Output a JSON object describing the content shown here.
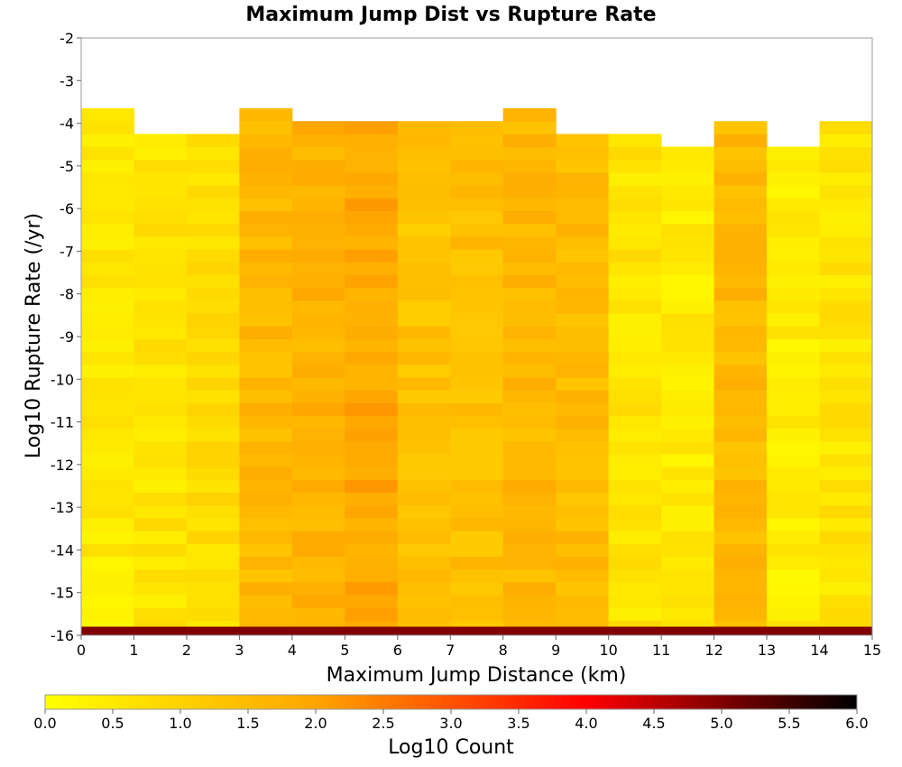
{
  "chart_data": {
    "type": "heatmap",
    "title": "Maximum Jump Dist vs Rupture Rate",
    "xlabel": "Maximum Jump Distance (km)",
    "ylabel": "Log10 Rupture Rate (/yr)",
    "xlim": [
      0,
      15
    ],
    "ylim": [
      -16,
      -2
    ],
    "x_ticks": [
      "0",
      "1",
      "2",
      "3",
      "4",
      "5",
      "6",
      "7",
      "8",
      "9",
      "10",
      "11",
      "12",
      "13",
      "14",
      "15"
    ],
    "y_ticks": [
      "-2",
      "-3",
      "-4",
      "-5",
      "-6",
      "-7",
      "-8",
      "-9",
      "-10",
      "-11",
      "-12",
      "-13",
      "-14",
      "-15",
      "-16"
    ],
    "x_bin_width": 1,
    "y_bin_start": -15.8,
    "y_bin_height": 0.3,
    "grid": true,
    "colorbar": {
      "label": "Log10 Count",
      "range": [
        0,
        6
      ],
      "ticks": [
        "0.0",
        "0.5",
        "1.0",
        "1.5",
        "2.0",
        "2.5",
        "3.0",
        "3.5",
        "4.0",
        "4.5",
        "5.0",
        "5.5",
        "6.0"
      ],
      "colors": [
        "#ffff00",
        "#ffa500",
        "#ff0000",
        "#000000"
      ]
    },
    "column_top_rate": [
      -3.8,
      -4.4,
      -4.4,
      -3.8,
      -4.1,
      -4.1,
      -4.1,
      -4.1,
      -3.8,
      -4.4,
      -4.4,
      -4.7,
      -4.1,
      -4.7,
      -4.1
    ],
    "column_level": [
      0.45,
      0.6,
      0.75,
      1.55,
      1.7,
      1.9,
      1.35,
      1.4,
      1.6,
      1.5,
      0.6,
      0.45,
      1.55,
      0.4,
      0.6
    ],
    "bottom_row": {
      "rate": -15.9,
      "log10_count": 5.0
    },
    "empty_cells": [
      [
        0,
        -6.4
      ],
      [
        0,
        -6.7
      ],
      [
        0,
        -7.9
      ],
      [
        0,
        -10.0
      ],
      [
        0,
        -12.7
      ],
      [
        1,
        -7.0
      ],
      [
        1,
        -8.8
      ],
      [
        1,
        -11.5
      ],
      [
        1,
        -12.4
      ],
      [
        1,
        -12.7
      ],
      [
        1,
        -15.4
      ],
      [
        2,
        -6.1
      ],
      [
        10,
        -7.3
      ],
      [
        11,
        -6.4
      ],
      [
        11,
        -6.7
      ],
      [
        11,
        -7.0
      ],
      [
        11,
        -8.5
      ],
      [
        11,
        -8.8
      ],
      [
        11,
        -12.4
      ],
      [
        11,
        -12.7
      ],
      [
        13,
        -7.3
      ],
      [
        13,
        -7.6
      ],
      [
        13,
        -7.9
      ],
      [
        13,
        -9.1
      ],
      [
        13,
        -10.0
      ],
      [
        13,
        -10.6
      ],
      [
        13,
        -10.9
      ],
      [
        13,
        -11.5
      ],
      [
        13,
        -12.4
      ],
      [
        13,
        -12.7
      ],
      [
        13,
        -13.6
      ],
      [
        13,
        -13.9
      ],
      [
        14,
        -7.0
      ],
      [
        14,
        -8.2
      ]
    ]
  }
}
